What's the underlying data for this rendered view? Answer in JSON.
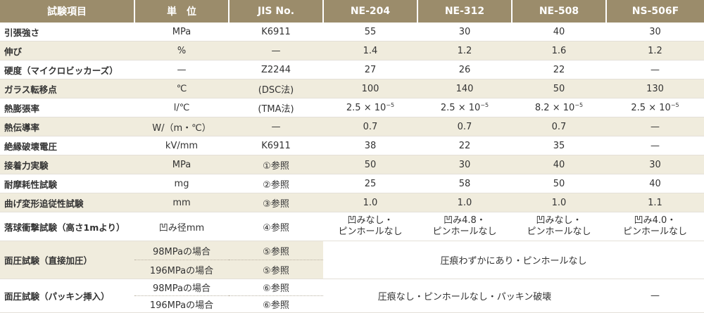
{
  "headers": [
    "試験項目",
    "単　位",
    "JIS No.",
    "NE-204",
    "NE-312",
    "NE-508",
    "NS-506F"
  ],
  "rows": [
    {
      "item": "引張強さ",
      "unit": "MPa",
      "jis": "K6911",
      "v": [
        "55",
        "30",
        "40",
        "30"
      ]
    },
    {
      "item": "伸び",
      "unit": "%",
      "jis": "—",
      "v": [
        "1.4",
        "1.2",
        "1.6",
        "1.2"
      ]
    },
    {
      "item": "硬度（マイクロビッカーズ）",
      "unit": "—",
      "jis": "Z2244",
      "v": [
        "27",
        "26",
        "22",
        "—"
      ]
    },
    {
      "item": "ガラス転移点",
      "unit": "℃",
      "jis": "(DSC法)",
      "v": [
        "100",
        "140",
        "50",
        "130"
      ]
    },
    {
      "item": "熱膨張率",
      "unit": "l/℃",
      "jis": "(TMA法)"
    },
    {
      "item": "熱伝導率",
      "unit": "W/（m・℃）",
      "jis": "—",
      "v": [
        "0.7",
        "0.7",
        "0.7",
        "—"
      ]
    },
    {
      "item": "絶縁破壊電圧",
      "unit": "kV/mm",
      "jis": "K6911",
      "v": [
        "38",
        "22",
        "35",
        "—"
      ]
    },
    {
      "item": "接着力実験",
      "unit": "MPa",
      "jis": "①参照",
      "v": [
        "50",
        "30",
        "40",
        "30"
      ]
    },
    {
      "item": "耐摩耗性試験",
      "unit": "mg",
      "jis": "②参照",
      "v": [
        "25",
        "58",
        "50",
        "40"
      ]
    },
    {
      "item": "曲げ変形追従性試験",
      "unit": "mm",
      "jis": "③参照",
      "v": [
        "1.0",
        "1.0",
        "1.0",
        "1.1"
      ]
    }
  ],
  "expansion": [
    {
      "m": "2.5",
      "x": "×",
      "base": "10",
      "exp": "−5"
    },
    {
      "m": "2.5",
      "x": "×",
      "base": "10",
      "exp": "−5"
    },
    {
      "m": "8.2",
      "x": "×",
      "base": "10",
      "exp": "−5"
    },
    {
      "m": "2.5",
      "x": "×",
      "base": "10",
      "exp": "−5"
    }
  ],
  "impact": {
    "item": "落球衝撃試験（高さ1mより）",
    "unit": "凹み径mm",
    "jis": "④参照",
    "v": [
      {
        "l1": "凹みなし・",
        "l2": "ピンホールなし"
      },
      {
        "l1": "凹み4.8・",
        "l2": "ピンホールなし"
      },
      {
        "l1": "凹みなし・",
        "l2": "ピンホールなし"
      },
      {
        "l1": "凹み4.0・",
        "l2": "ピンホールなし"
      }
    ]
  },
  "pressure_direct": {
    "item": "面圧試験（直接加圧）",
    "sub": [
      {
        "unit": "98MPaの場合",
        "jis": "⑤参照"
      },
      {
        "unit": "196MPaの場合",
        "jis": "⑤参照"
      }
    ],
    "result": "圧痕わずかにあり・ピンホールなし"
  },
  "pressure_packing": {
    "item": "面圧試験（パッキン挿入）",
    "sub": [
      {
        "unit": "98MPaの場合",
        "jis": "⑥参照"
      },
      {
        "unit": "196MPaの場合",
        "jis": "⑥参照"
      }
    ],
    "result": "圧痕なし・ピンホールなし・パッキン破壊",
    "ns506f": "—"
  },
  "colors": {
    "header_bg": "#9b8c6b",
    "row_shade": "#f0ecdd"
  }
}
